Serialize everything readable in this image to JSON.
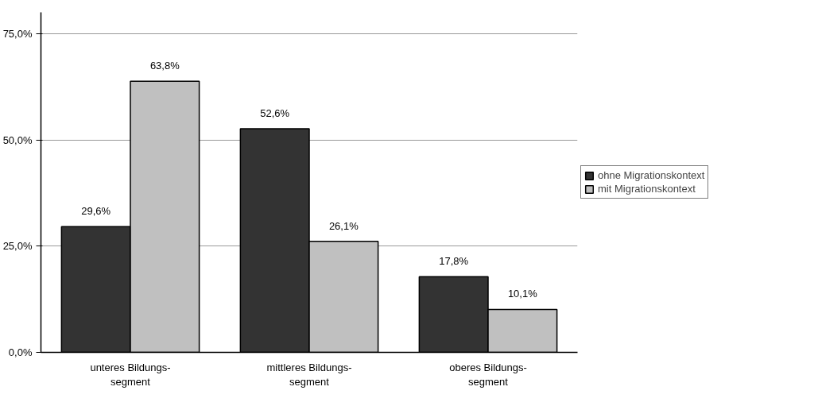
{
  "chart_data": {
    "type": "bar",
    "categories": [
      "unteres Bildungs-\nsegment",
      "mittleres Bildungs-\nsegment",
      "oberes Bildungs-\nsegment"
    ],
    "series": [
      {
        "name": "ohne Migrationskontext",
        "color": "#333333",
        "values": [
          29.6,
          52.6,
          17.8
        ],
        "value_labels": [
          "29,6%",
          "52,6%",
          "17,8%"
        ]
      },
      {
        "name": "mit Migrationskontext",
        "color": "#c0c0c0",
        "values": [
          63.8,
          26.1,
          10.1
        ],
        "value_labels": [
          "63,8%",
          "26,1%",
          "10,1%"
        ]
      }
    ],
    "ylim": [
      0,
      80
    ],
    "yticks": [
      {
        "value": 0,
        "label": "0,0%"
      },
      {
        "value": 25,
        "label": "25,0%"
      },
      {
        "value": 50,
        "label": "50,0%"
      },
      {
        "value": 75,
        "label": "75,0%"
      }
    ],
    "grid": "y",
    "legend": "right"
  }
}
